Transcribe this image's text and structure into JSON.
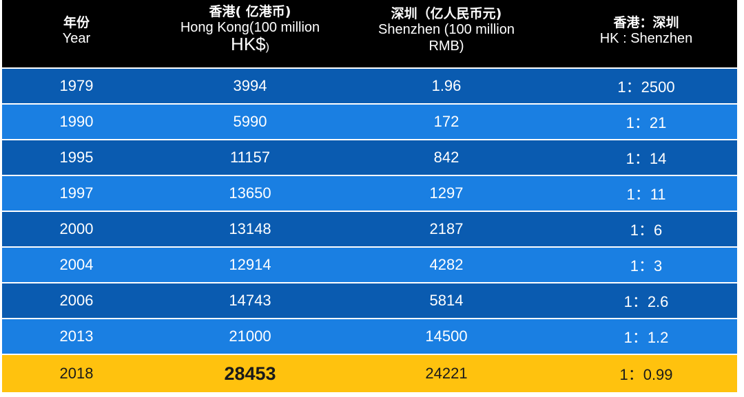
{
  "chart_data": {
    "type": "table",
    "columns": [
      {
        "zh": "年份",
        "en": "Year"
      },
      {
        "zh": "香港( 亿港币)",
        "en_main": "Hong Kong(100 million ",
        "en_big": "HK$",
        "en_small": ")"
      },
      {
        "zh": "深圳（亿人民币元)",
        "en": "Shenzhen (100 million RMB)"
      },
      {
        "zh": "香港：深圳",
        "en": "HK : Shenzhen"
      }
    ],
    "rows": [
      {
        "year": "1979",
        "hk": "3994",
        "sz": "1.96",
        "ratio": "1：2500"
      },
      {
        "year": "1990",
        "hk": "5990",
        "sz": "172",
        "ratio": "1：21"
      },
      {
        "year": "1995",
        "hk": "11157",
        "sz": "842",
        "ratio": "1：14"
      },
      {
        "year": "1997",
        "hk": "13650",
        "sz": "1297",
        "ratio": "1：11"
      },
      {
        "year": "2000",
        "hk": "13148",
        "sz": "2187",
        "ratio": "1：6"
      },
      {
        "year": "2004",
        "hk": "12914",
        "sz": "4282",
        "ratio": "1：3"
      },
      {
        "year": "2006",
        "hk": "14743",
        "sz": "5814",
        "ratio": "1：2.6"
      },
      {
        "year": "2013",
        "hk": "21000",
        "sz": "14500",
        "ratio": "1：1.2"
      },
      {
        "year": "2018",
        "hk": "28453",
        "sz": "24221",
        "ratio": "1：0.99"
      }
    ],
    "highlight_row": 8,
    "colors": {
      "header_bg": "#000000",
      "row_dark": "#0a5bb0",
      "row_light": "#1a7fe2",
      "highlight": "#ffc20e"
    }
  }
}
